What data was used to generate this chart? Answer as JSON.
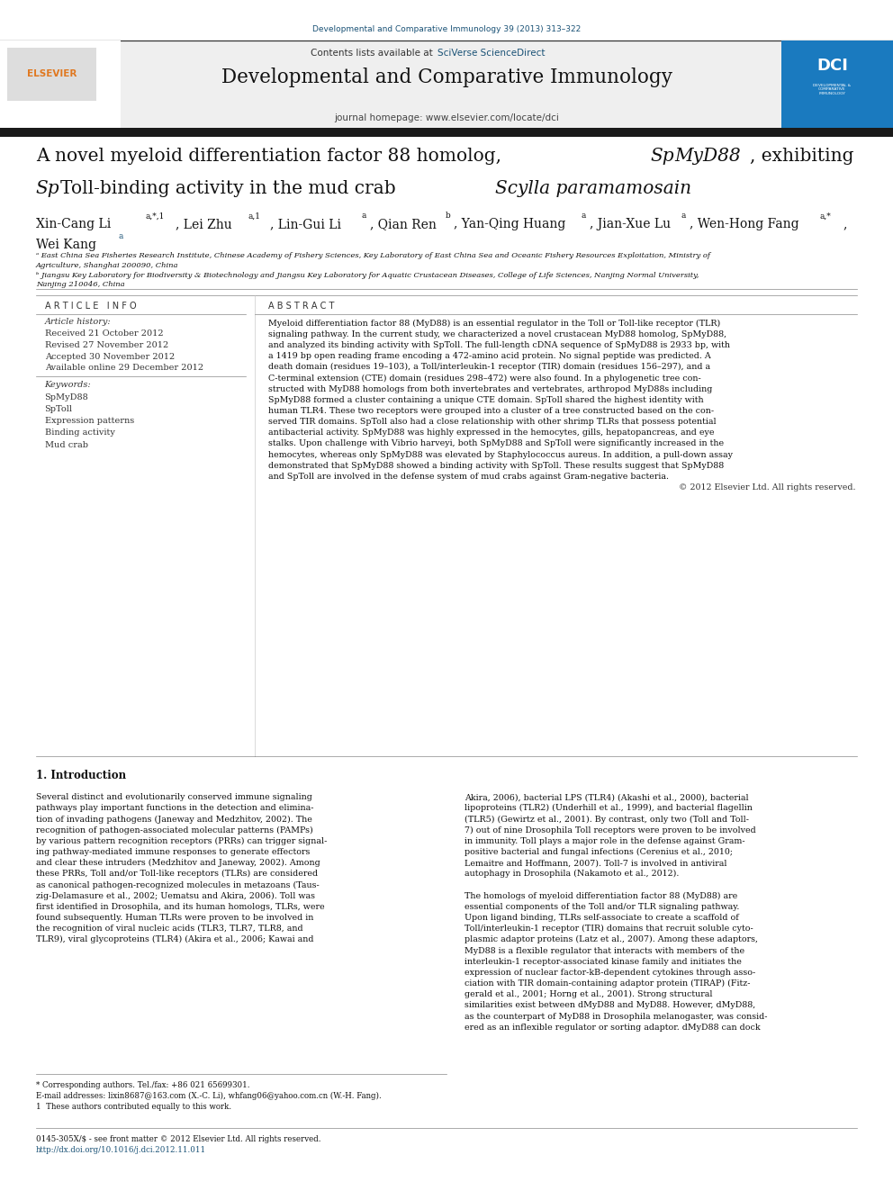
{
  "page_width": 9.92,
  "page_height": 13.23,
  "bg_color": "#ffffff",
  "journal_ref_color": "#1a5276",
  "link_color": "#1a5276",
  "orange_color": "#e07820",
  "header_bar_color": "#f0f0f0",
  "dark_bar_color": "#1a1a1a",
  "journal_ref": "Developmental and Comparative Immunology 39 (2013) 313–322",
  "journal_name": "Developmental and Comparative Immunology",
  "journal_homepage": "journal homepage: www.elsevier.com/locate/dci",
  "article_info_header": "A R T I C L E   I N F O",
  "abstract_header": "A B S T R A C T",
  "article_history_label": "Article history:",
  "received": "Received 21 October 2012",
  "revised": "Revised 27 November 2012",
  "accepted": "Accepted 30 November 2012",
  "available": "Available online 29 December 2012",
  "keywords_label": "Keywords:",
  "keywords": [
    "SpMyD88",
    "SpToll",
    "Expression patterns",
    "Binding activity",
    "Mud crab"
  ],
  "copyright": "© 2012 Elsevier Ltd. All rights reserved.",
  "intro_header": "1. Introduction",
  "footnote_star": "* Corresponding authors. Tel./fax: +86 021 65699301.",
  "footnote_email": "E-mail addresses: lixin8687@163.com (X.-C. Li), whfang06@yahoo.com.cn (W.-H. Fang).",
  "footnote_1": "1  These authors contributed equally to this work.",
  "footer_text": "0145-305X/$ - see front matter © 2012 Elsevier Ltd. All rights reserved.",
  "footer_doi": "http://dx.doi.org/10.1016/j.dci.2012.11.011"
}
